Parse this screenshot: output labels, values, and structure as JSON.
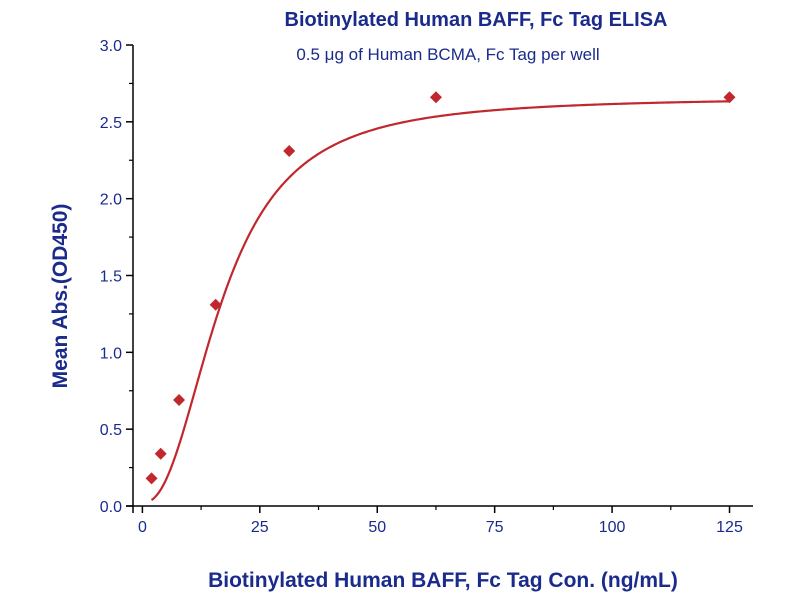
{
  "chart_data": {
    "type": "scatter",
    "title": "Biotinylated Human BAFF, Fc Tag ELISA",
    "subtitle": "0.5 μg of Human BCMA, Fc Tag per well",
    "xlabel": "Biotinylated Human BAFF, Fc Tag Con. (ng/mL)",
    "ylabel": "Mean Abs.(OD450)",
    "xlim": [
      -2,
      130
    ],
    "ylim": [
      0,
      3.0
    ],
    "x_ticks": [
      0,
      25,
      50,
      75,
      100,
      125
    ],
    "y_ticks": [
      0.0,
      0.5,
      1.0,
      1.5,
      2.0,
      2.5,
      3.0
    ],
    "x_tick_labels": [
      "0",
      "25",
      "50",
      "75",
      "100",
      "125"
    ],
    "y_tick_labels": [
      "0.0",
      "0.5",
      "1.0",
      "1.5",
      "2.0",
      "2.5",
      "3.0"
    ],
    "grid": false,
    "series": [
      {
        "x": [
          1.95,
          3.9,
          7.8,
          15.6,
          31.25,
          62.5,
          125
        ],
        "y": [
          0.18,
          0.34,
          0.69,
          1.31,
          2.31,
          2.66,
          2.66
        ],
        "marker": "diamond",
        "fit": "4PL"
      }
    ],
    "colors": {
      "series": "#c0282d",
      "axis": "#000000",
      "text": "#1a2b8c"
    }
  }
}
